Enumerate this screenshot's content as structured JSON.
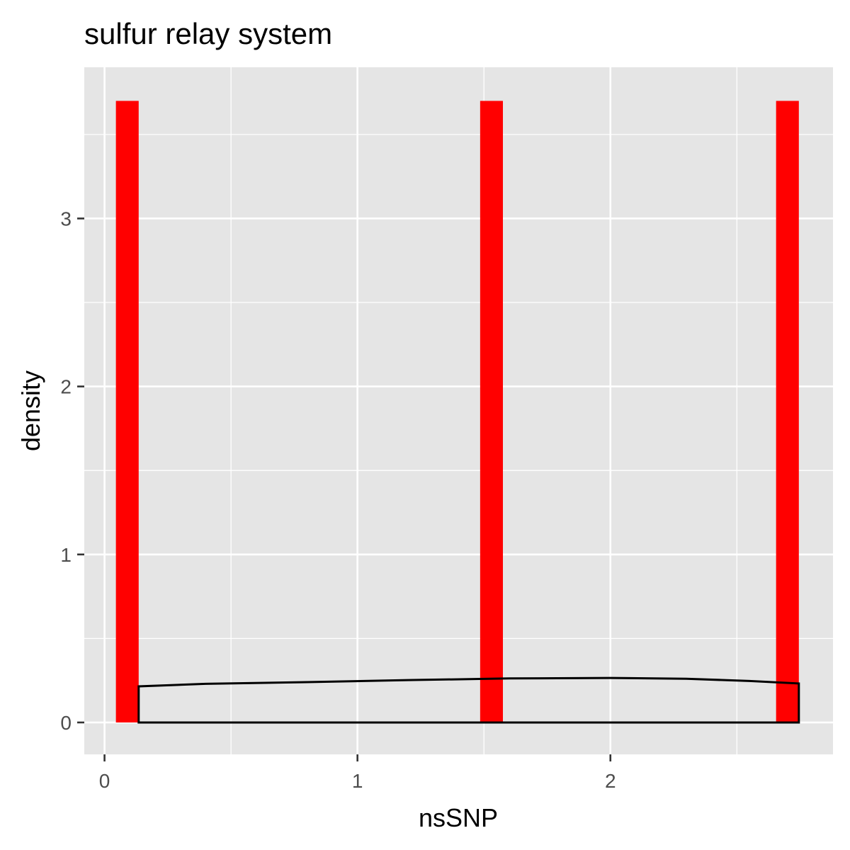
{
  "chart_data": {
    "type": "histogram",
    "title": "sulfur relay system",
    "xlabel": "nsSNP",
    "ylabel": "density",
    "xlim": [
      -0.08,
      2.88
    ],
    "ylim": [
      -0.19,
      3.9
    ],
    "x_ticks": [
      0,
      1,
      2
    ],
    "x_minor_ticks": [
      0.5,
      1.5,
      2.5
    ],
    "y_ticks": [
      0,
      1,
      2,
      3
    ],
    "y_minor_ticks": [
      0.5,
      1.5,
      2.5,
      3.5
    ],
    "grid": true,
    "bars": [
      {
        "x0": 0.045,
        "x1": 0.135,
        "density": 3.7
      },
      {
        "x0": 1.485,
        "x1": 1.575,
        "density": 3.7
      },
      {
        "x0": 2.655,
        "x1": 2.745,
        "density": 3.7
      }
    ],
    "bar_color": "#ff0000",
    "density_curve": {
      "x": [
        0.135,
        0.4,
        0.8,
        1.2,
        1.6,
        2.0,
        2.3,
        2.55,
        2.745
      ],
      "y": [
        0.215,
        0.23,
        0.24,
        0.252,
        0.262,
        0.265,
        0.26,
        0.247,
        0.232
      ],
      "color": "#000000"
    },
    "panel_color": "#e5e5e5",
    "grid_color": "#ffffff"
  }
}
